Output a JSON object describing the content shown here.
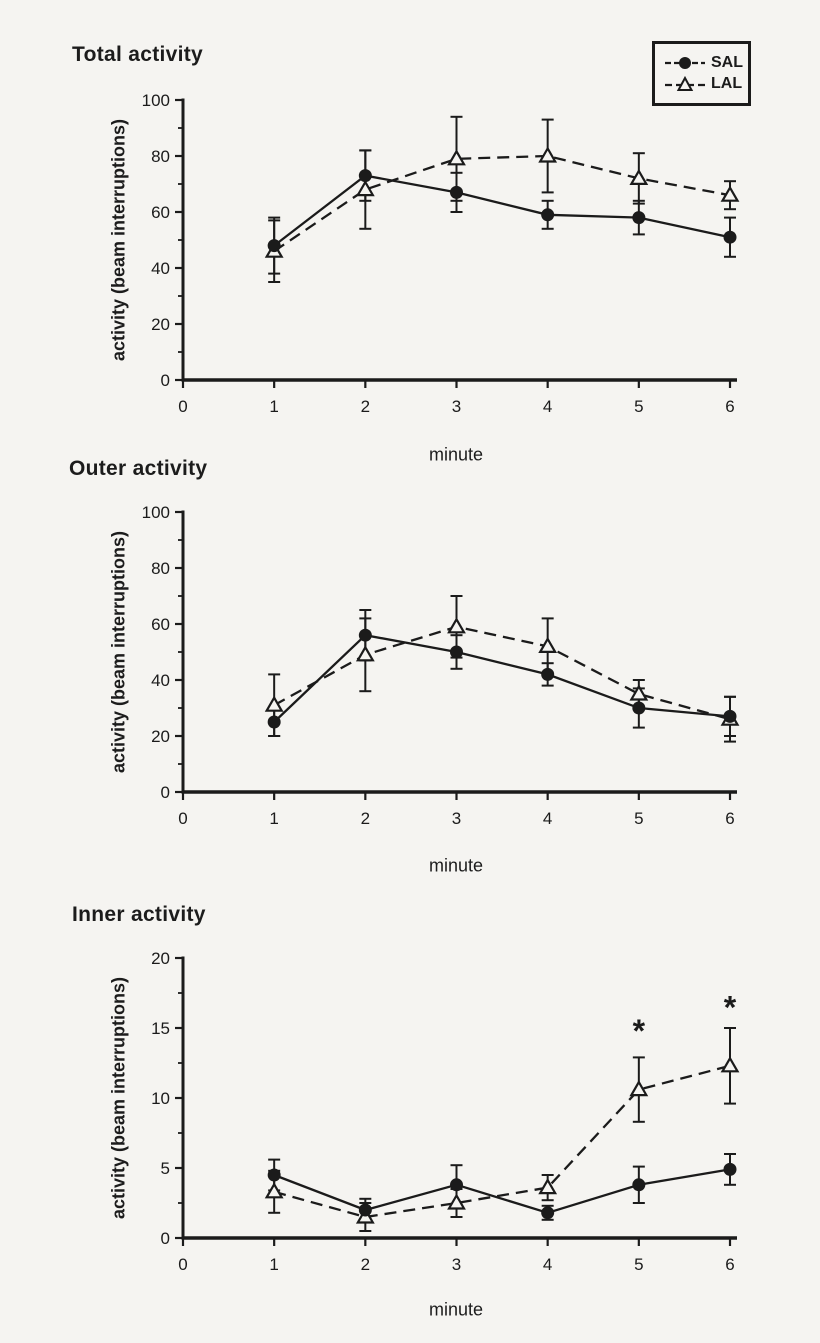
{
  "colors": {
    "ink": "#1b1b1b",
    "background": "#f5f4f1"
  },
  "chart_data": [
    {
      "type": "line",
      "title": "Total activity",
      "xlabel": "minute",
      "ylabel": "activity (beam interruptions)",
      "x": [
        1,
        2,
        3,
        4,
        5,
        6
      ],
      "xlim": [
        0,
        6
      ],
      "ylim": [
        0,
        100
      ],
      "ytick_step": 20,
      "xtick_step": 1,
      "grid": false,
      "legend_position": "top-right",
      "series": [
        {
          "name": "SAL",
          "marker": "filled-circle",
          "line": "solid",
          "values": [
            48,
            73,
            67,
            59,
            58,
            51
          ],
          "errors": [
            10,
            9,
            7,
            5,
            6,
            7
          ]
        },
        {
          "name": "LAL",
          "marker": "open-triangle",
          "line": "dashed",
          "values": [
            46,
            68,
            79,
            80,
            72,
            66
          ],
          "errors": [
            11,
            14,
            15,
            13,
            9,
            5
          ]
        }
      ],
      "annotations": []
    },
    {
      "type": "line",
      "title": "Outer activity",
      "xlabel": "minute",
      "ylabel": "activity (beam interruptions)",
      "x": [
        1,
        2,
        3,
        4,
        5,
        6
      ],
      "xlim": [
        0,
        6
      ],
      "ylim": [
        0,
        100
      ],
      "ytick_step": 20,
      "xtick_step": 1,
      "grid": false,
      "legend_position": "none",
      "series": [
        {
          "name": "SAL",
          "marker": "filled-circle",
          "line": "solid",
          "values": [
            25,
            56,
            50,
            42,
            30,
            27
          ],
          "errors": [
            5,
            9,
            6,
            4,
            7,
            7
          ]
        },
        {
          "name": "LAL",
          "marker": "open-triangle",
          "line": "dashed",
          "values": [
            31,
            49,
            59,
            52,
            35,
            26
          ],
          "errors": [
            11,
            13,
            11,
            10,
            5,
            8
          ]
        }
      ],
      "annotations": []
    },
    {
      "type": "line",
      "title": "Inner activity",
      "xlabel": "minute",
      "ylabel": "activity (beam interruptions)",
      "x": [
        1,
        2,
        3,
        4,
        5,
        6
      ],
      "xlim": [
        0,
        6
      ],
      "ylim": [
        0,
        20
      ],
      "ytick_step": 5,
      "xtick_step": 1,
      "grid": false,
      "legend_position": "none",
      "series": [
        {
          "name": "SAL",
          "marker": "filled-circle",
          "line": "solid",
          "values": [
            4.5,
            2.0,
            3.8,
            1.8,
            3.8,
            4.9
          ],
          "errors": [
            1.1,
            0.8,
            1.4,
            0.5,
            1.3,
            1.1
          ]
        },
        {
          "name": "LAL",
          "marker": "open-triangle",
          "line": "dashed",
          "values": [
            3.3,
            1.5,
            2.5,
            3.6,
            10.6,
            12.3
          ],
          "errors": [
            1.5,
            1.0,
            1.0,
            0.9,
            2.3,
            2.7
          ]
        }
      ],
      "annotations": [
        {
          "x": 5,
          "y": 14.7,
          "text": "*"
        },
        {
          "x": 6,
          "y": 16.4,
          "text": "*"
        }
      ]
    }
  ]
}
